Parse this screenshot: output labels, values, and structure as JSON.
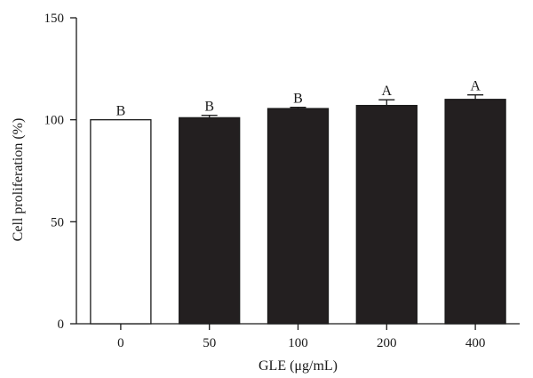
{
  "chart_data": {
    "type": "bar",
    "categories": [
      "0",
      "50",
      "100",
      "200",
      "400"
    ],
    "values": [
      100,
      101,
      105.5,
      107,
      110
    ],
    "errors": [
      0,
      1.2,
      0.6,
      2.8,
      2.2
    ],
    "letters": [
      "B",
      "B",
      "B",
      "A",
      "A"
    ],
    "fills": [
      "#ffffff",
      "#231f20",
      "#231f20",
      "#231f20",
      "#231f20"
    ],
    "yticks": [
      0,
      50,
      100,
      150
    ],
    "ylim": [
      0,
      150
    ],
    "xlabel": "GLE (μg/mL)",
    "ylabel": "Cell proliferation (%)",
    "grid": false,
    "legend": "none"
  }
}
